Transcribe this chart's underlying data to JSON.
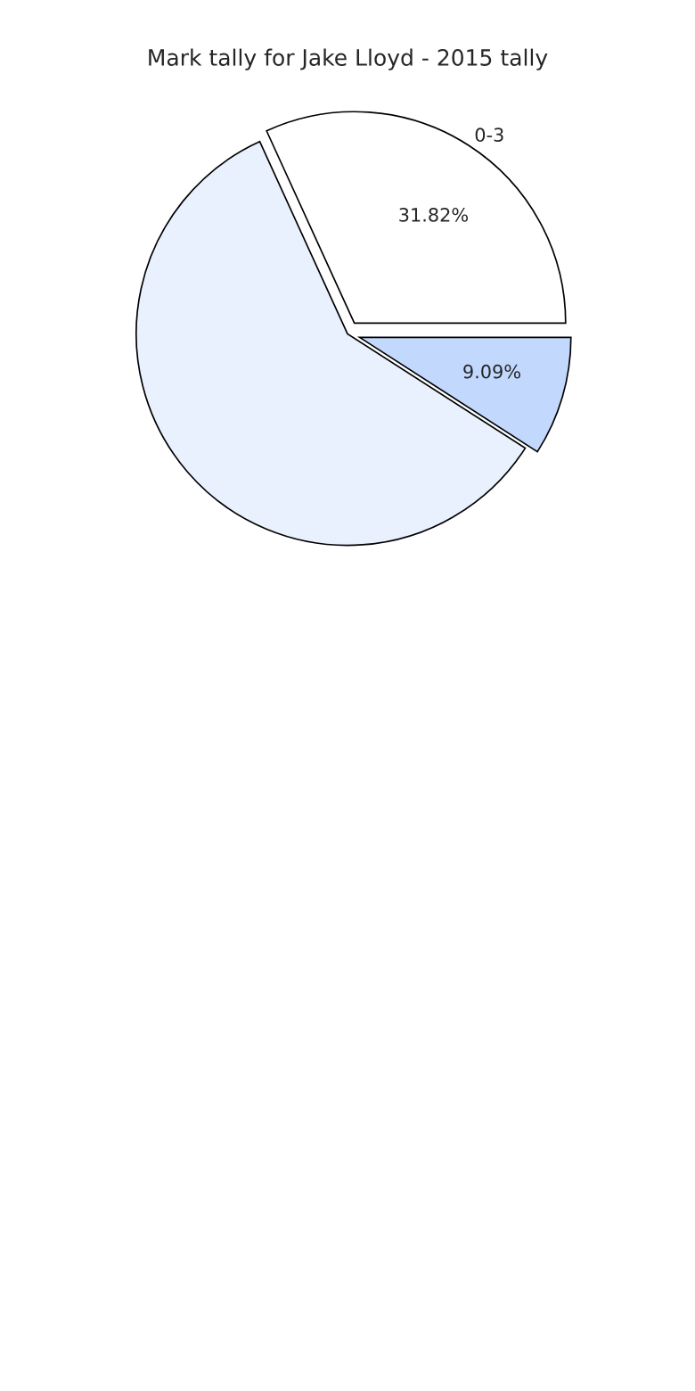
{
  "chart_data": {
    "type": "pie",
    "title": "Mark tally for Jake Lloyd - 2015 tally",
    "categories": [
      "0-3",
      null,
      null
    ],
    "values": [
      31.82,
      59.09,
      9.09
    ],
    "value_labels": [
      "31.82%",
      null,
      "9.09%"
    ],
    "colors": [
      "#ffffff",
      "#eaf1fe",
      "#c3d8fd"
    ]
  }
}
